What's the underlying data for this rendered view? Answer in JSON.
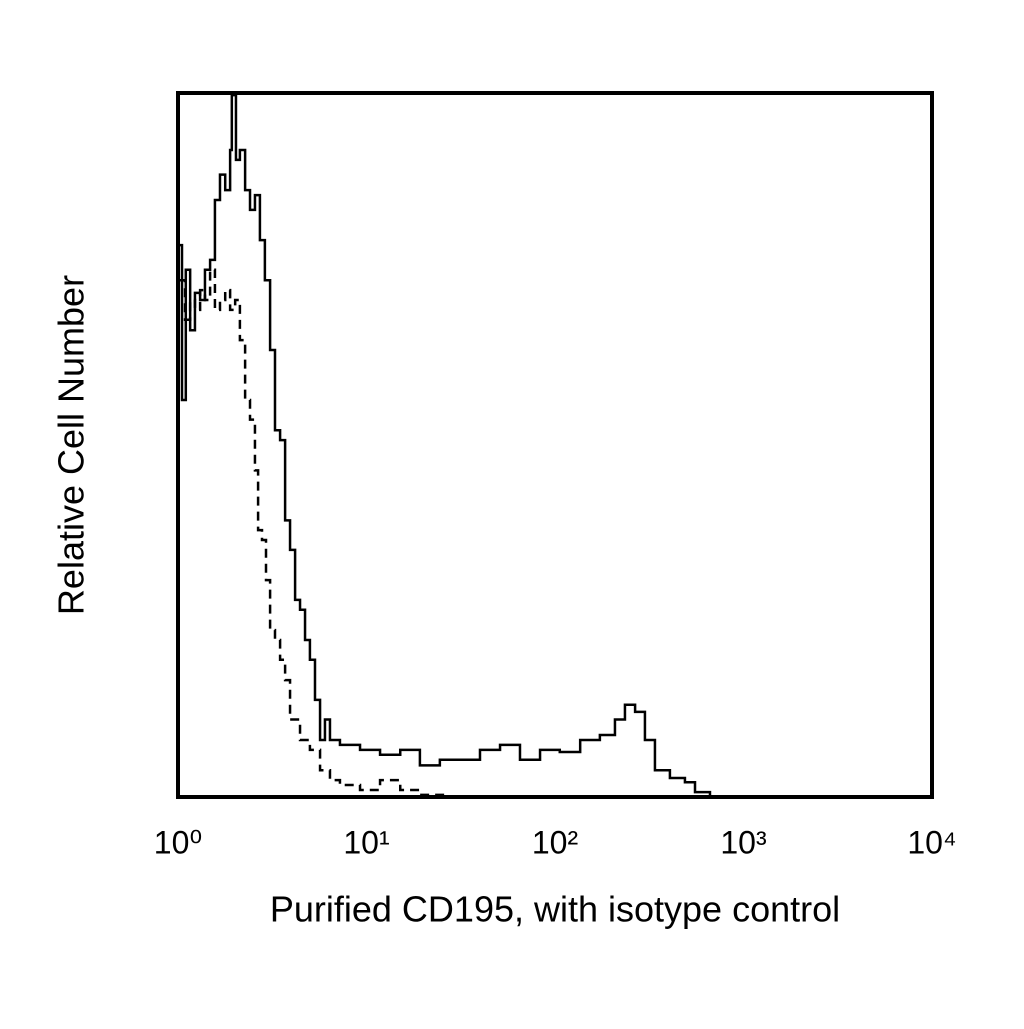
{
  "chart_data": {
    "type": "line",
    "xlabel": "Purified CD195, with isotype control",
    "ylabel": "Relative Cell Number",
    "xscale": "log",
    "xlim": [
      1,
      10000
    ],
    "xticks": [
      {
        "value": 1,
        "label": "10⁰"
      },
      {
        "value": 10,
        "label": "10¹"
      },
      {
        "value": 100,
        "label": "10²"
      },
      {
        "value": 1000,
        "label": "10³"
      },
      {
        "value": 10000,
        "label": "10⁴"
      }
    ],
    "ylim": [
      0,
      100
    ],
    "series": [
      {
        "color": "#000000",
        "dashed": false,
        "x": [
          1,
          1.05,
          1.1,
          1.16,
          1.23,
          1.31,
          1.39,
          1.48,
          1.57,
          1.67,
          1.78,
          1.89,
          1.93,
          2.03,
          2.13,
          2.27,
          2.41,
          2.56,
          2.72,
          2.89,
          3.08,
          3.27,
          3.48,
          3.7,
          3.93,
          4.18,
          4.44,
          4.72,
          5.01,
          5.33,
          5.67,
          6.02,
          6.4,
          7.23,
          9.24,
          11.8,
          15.1,
          19.2,
          24.5,
          31.3,
          40.0,
          51.1,
          65.2,
          83.3,
          106,
          136,
          173,
          208,
          235,
          266,
          300,
          339,
          407,
          489,
          553,
          664,
          10000
        ],
        "values": [
          78.4,
          56.4,
          74.9,
          66.3,
          71.6,
          70.6,
          74.9,
          76.3,
          84.8,
          88.4,
          86.2,
          91.9,
          99.7,
          90.5,
          91.9,
          86.2,
          83.4,
          85.5,
          79.1,
          73.4,
          63.5,
          52.1,
          50.7,
          39.3,
          35.1,
          28.0,
          26.6,
          22.3,
          19.5,
          13.8,
          8.1,
          11.0,
          8.1,
          7.4,
          6.7,
          6.0,
          6.7,
          4.5,
          5.3,
          5.3,
          6.7,
          7.4,
          5.3,
          6.7,
          6.4,
          8.1,
          8.8,
          11.0,
          13.1,
          12.1,
          8.1,
          3.8,
          2.7,
          2.1,
          0.7,
          0,
          0
        ]
      },
      {
        "color": "#000000",
        "dashed": true,
        "x": [
          1,
          1.09,
          1.16,
          1.23,
          1.31,
          1.39,
          1.48,
          1.57,
          1.67,
          1.78,
          1.89,
          2.01,
          2.13,
          2.27,
          2.41,
          2.56,
          2.66,
          2.79,
          2.93,
          3.08,
          3.27,
          3.48,
          3.7,
          3.93,
          4.18,
          4.44,
          5.01,
          5.67,
          6.4,
          7.23,
          9.24,
          11.8,
          15.1,
          19.2,
          27.7,
          10000
        ],
        "values": [
          73.4,
          67.8,
          70.6,
          69.2,
          72.0,
          70.6,
          74.9,
          69.2,
          70.6,
          72.0,
          69.2,
          70.6,
          64.9,
          56.4,
          53.6,
          46.4,
          37.9,
          36.5,
          30.8,
          23.7,
          22.3,
          19.5,
          16.6,
          11.0,
          11.0,
          8.1,
          6.7,
          3.8,
          2.4,
          1.7,
          1.0,
          2.4,
          1.0,
          0.3,
          0,
          0
        ]
      }
    ]
  }
}
